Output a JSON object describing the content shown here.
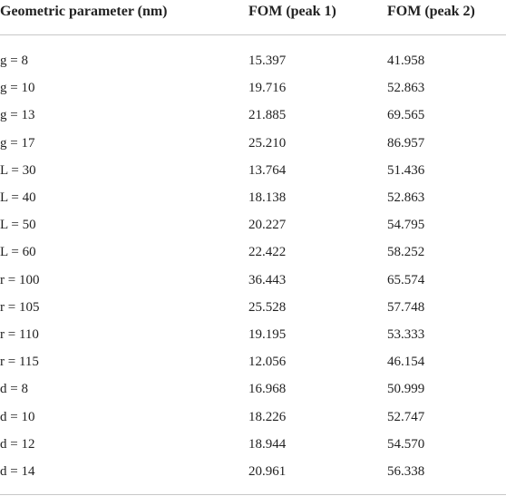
{
  "table": {
    "header": [
      "Geometric parameter (nm)",
      "FOM (peak 1)",
      "FOM (peak 2)"
    ],
    "rows": [
      [
        "g = 8",
        "15.397",
        "41.958"
      ],
      [
        "g = 10",
        "19.716",
        "52.863"
      ],
      [
        "g = 13",
        "21.885",
        "69.565"
      ],
      [
        "g = 17",
        "25.210",
        "86.957"
      ],
      [
        "L = 30",
        "13.764",
        "51.436"
      ],
      [
        "L = 40",
        "18.138",
        "52.863"
      ],
      [
        "L = 50",
        "20.227",
        "54.795"
      ],
      [
        "L = 60",
        "22.422",
        "58.252"
      ],
      [
        "r = 100",
        "36.443",
        "65.574"
      ],
      [
        "r = 105",
        "25.528",
        "57.748"
      ],
      [
        "r = 110",
        "19.195",
        "53.333"
      ],
      [
        "r = 115",
        "12.056",
        "46.154"
      ],
      [
        "d = 8",
        "16.968",
        "50.999"
      ],
      [
        "d = 10",
        "18.226",
        "52.747"
      ],
      [
        "d = 12",
        "18.944",
        "54.570"
      ],
      [
        "d = 14",
        "20.961",
        "56.338"
      ]
    ]
  }
}
